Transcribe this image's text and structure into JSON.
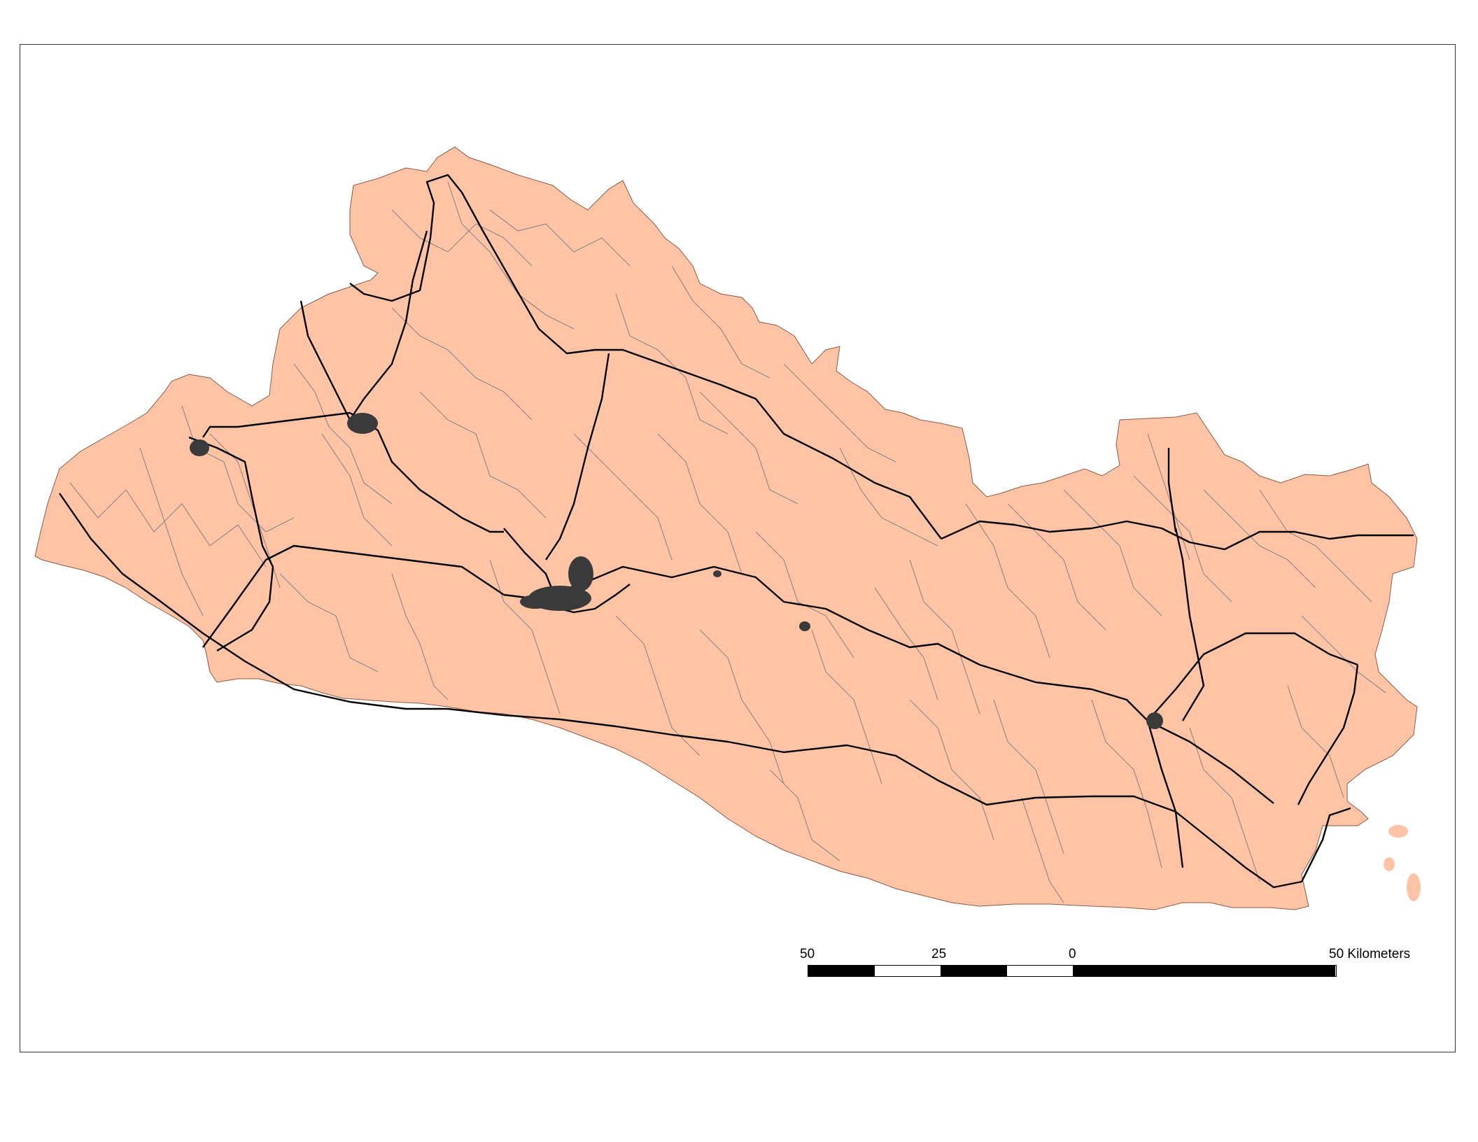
{
  "map": {
    "fill_color": "#FFC4A6",
    "road_primary_color": "#000000",
    "road_secondary_color": "#7A7A7A",
    "urban_color": "#3A3A3A"
  },
  "scale_bar": {
    "unit": "Kilometers",
    "labels": [
      "50",
      "25",
      "0",
      "50 Kilometers"
    ],
    "segment_colors": [
      "#000000",
      "#FFFFFF",
      "#000000",
      "#FFFFFF",
      "#000000"
    ]
  }
}
